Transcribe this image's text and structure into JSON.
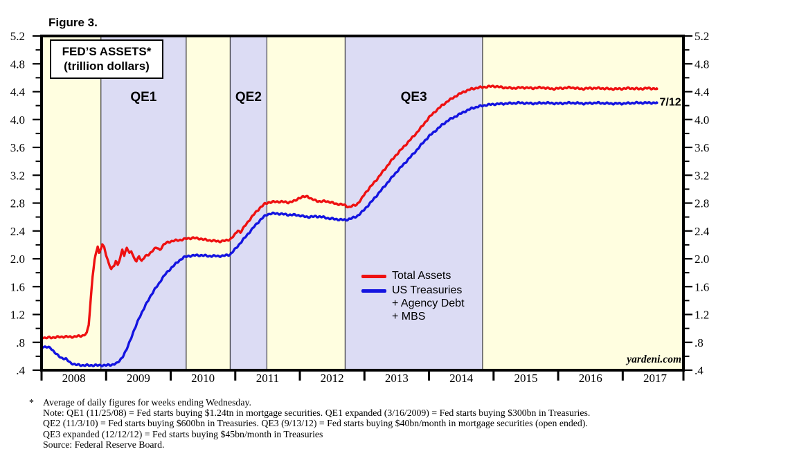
{
  "figure_label": "Figure 3.",
  "panel_title": {
    "line1": "FED’S ASSETS*",
    "line2": "(trillion dollars)"
  },
  "watermark": "yardeni.com",
  "legend": {
    "total_assets": "Total Assets",
    "treasuries_line1": "US Treasuries",
    "treasuries_line2": "+ Agency Debt",
    "treasuries_line3": "+ MBS"
  },
  "footnote": {
    "marker": "*",
    "lines": [
      "Average of daily figures for weeks ending Wednesday.",
      "Note: QE1 (11/25/08) = Fed starts buying $1.24tn in mortgage securities. QE1 expanded (3/16/2009) = Fed starts buying $300bn in Treasuries.",
      "QE2 (11/3/10) = Fed starts buying $600bn in Treasuries. QE3 (9/13/12) = Fed starts buying $40bn/month in mortgage securities (open ended).",
      "QE3 expanded (12/12/12) = Fed starts buying $45bn/month in Treasuries",
      "Source: Federal Reserve Board."
    ]
  },
  "chart_data": {
    "type": "line",
    "title": "FED'S ASSETS* (trillion dollars)",
    "xlabel": "",
    "ylabel": "trillion dollars",
    "x_domain": [
      2008,
      2017.94
    ],
    "y_domain": [
      0.4,
      5.2
    ],
    "y_major_step": 0.4,
    "y_minor_step": 0.2,
    "grid": false,
    "background_color": "#fffee0",
    "band_color": "#dcdcf4",
    "frame_color": "#000000",
    "y_ticks": [
      {
        "v": 5.2,
        "label": "5.2"
      },
      {
        "v": 4.8,
        "label": "4.8"
      },
      {
        "v": 4.4,
        "label": "4.4"
      },
      {
        "v": 4.0,
        "label": "4.0"
      },
      {
        "v": 3.6,
        "label": "3.6"
      },
      {
        "v": 3.2,
        "label": "3.2"
      },
      {
        "v": 2.8,
        "label": "2.8"
      },
      {
        "v": 2.4,
        "label": "2.4"
      },
      {
        "v": 2.0,
        "label": "2.0"
      },
      {
        "v": 1.6,
        "label": "1.6"
      },
      {
        "v": 1.2,
        "label": "1.2"
      },
      {
        "v": 0.8,
        "label": ".8"
      },
      {
        "v": 0.4,
        "label": ".4"
      }
    ],
    "x_ticks": [
      2008,
      2009,
      2010,
      2011,
      2012,
      2013,
      2014,
      2015,
      2016,
      2017
    ],
    "x_year_labels": [
      {
        "t": 2008.5,
        "label": "2008"
      },
      {
        "t": 2009.5,
        "label": "2009"
      },
      {
        "t": 2010.5,
        "label": "2010"
      },
      {
        "t": 2011.5,
        "label": "2011"
      },
      {
        "t": 2012.5,
        "label": "2012"
      },
      {
        "t": 2013.5,
        "label": "2013"
      },
      {
        "t": 2014.5,
        "label": "2014"
      },
      {
        "t": 2015.5,
        "label": "2015"
      },
      {
        "t": 2016.5,
        "label": "2016"
      },
      {
        "t": 2017.5,
        "label": "2017"
      }
    ],
    "qe_bands": [
      {
        "label": "QE1",
        "from": 2008.92,
        "to": 2010.24
      },
      {
        "label": "QE2",
        "from": 2010.92,
        "to": 2011.49
      },
      {
        "label": "QE3",
        "from": 2012.7,
        "to": 2014.83
      }
    ],
    "end_annotation": {
      "text": "7/12",
      "t": 2017.57,
      "v": 4.25
    },
    "series": [
      {
        "name": "Total Assets",
        "color": "#ee1111",
        "points": [
          [
            2008.0,
            0.88
          ],
          [
            2008.06,
            0.86
          ],
          [
            2008.12,
            0.87
          ],
          [
            2008.2,
            0.87
          ],
          [
            2008.3,
            0.88
          ],
          [
            2008.4,
            0.88
          ],
          [
            2008.5,
            0.88
          ],
          [
            2008.58,
            0.89
          ],
          [
            2008.65,
            0.9
          ],
          [
            2008.7,
            0.93
          ],
          [
            2008.73,
            1.05
          ],
          [
            2008.76,
            1.4
          ],
          [
            2008.79,
            1.75
          ],
          [
            2008.82,
            1.98
          ],
          [
            2008.85,
            2.1
          ],
          [
            2008.87,
            2.18
          ],
          [
            2008.89,
            2.08
          ],
          [
            2008.91,
            2.12
          ],
          [
            2008.94,
            2.22
          ],
          [
            2008.97,
            2.16
          ],
          [
            2009.0,
            2.05
          ],
          [
            2009.04,
            1.93
          ],
          [
            2009.08,
            1.86
          ],
          [
            2009.12,
            1.9
          ],
          [
            2009.15,
            1.96
          ],
          [
            2009.18,
            1.91
          ],
          [
            2009.22,
            2.02
          ],
          [
            2009.25,
            2.14
          ],
          [
            2009.28,
            2.04
          ],
          [
            2009.32,
            2.16
          ],
          [
            2009.36,
            2.08
          ],
          [
            2009.39,
            2.12
          ],
          [
            2009.43,
            2.01
          ],
          [
            2009.47,
            1.96
          ],
          [
            2009.51,
            2.04
          ],
          [
            2009.55,
            1.97
          ],
          [
            2009.6,
            2.03
          ],
          [
            2009.66,
            2.06
          ],
          [
            2009.72,
            2.12
          ],
          [
            2009.78,
            2.16
          ],
          [
            2009.83,
            2.13
          ],
          [
            2009.9,
            2.21
          ],
          [
            2009.96,
            2.24
          ],
          [
            2010.05,
            2.26
          ],
          [
            2010.15,
            2.27
          ],
          [
            2010.25,
            2.29
          ],
          [
            2010.35,
            2.3
          ],
          [
            2010.45,
            2.29
          ],
          [
            2010.55,
            2.27
          ],
          [
            2010.65,
            2.26
          ],
          [
            2010.75,
            2.25
          ],
          [
            2010.85,
            2.26
          ],
          [
            2010.92,
            2.28
          ],
          [
            2010.99,
            2.34
          ],
          [
            2011.04,
            2.41
          ],
          [
            2011.08,
            2.38
          ],
          [
            2011.14,
            2.46
          ],
          [
            2011.22,
            2.56
          ],
          [
            2011.3,
            2.65
          ],
          [
            2011.38,
            2.73
          ],
          [
            2011.46,
            2.79
          ],
          [
            2011.52,
            2.81
          ],
          [
            2011.62,
            2.82
          ],
          [
            2011.72,
            2.82
          ],
          [
            2011.82,
            2.81
          ],
          [
            2011.92,
            2.83
          ],
          [
            2011.98,
            2.87
          ],
          [
            2012.06,
            2.89
          ],
          [
            2012.12,
            2.9
          ],
          [
            2012.17,
            2.86
          ],
          [
            2012.24,
            2.84
          ],
          [
            2012.32,
            2.82
          ],
          [
            2012.4,
            2.83
          ],
          [
            2012.48,
            2.81
          ],
          [
            2012.56,
            2.79
          ],
          [
            2012.64,
            2.78
          ],
          [
            2012.7,
            2.77
          ],
          [
            2012.76,
            2.74
          ],
          [
            2012.82,
            2.76
          ],
          [
            2012.88,
            2.78
          ],
          [
            2012.95,
            2.85
          ],
          [
            2013.0,
            2.93
          ],
          [
            2013.1,
            3.04
          ],
          [
            2013.2,
            3.15
          ],
          [
            2013.3,
            3.27
          ],
          [
            2013.4,
            3.39
          ],
          [
            2013.5,
            3.5
          ],
          [
            2013.6,
            3.6
          ],
          [
            2013.7,
            3.7
          ],
          [
            2013.8,
            3.8
          ],
          [
            2013.9,
            3.91
          ],
          [
            2014.0,
            4.03
          ],
          [
            2014.1,
            4.12
          ],
          [
            2014.2,
            4.2
          ],
          [
            2014.3,
            4.27
          ],
          [
            2014.42,
            4.34
          ],
          [
            2014.54,
            4.4
          ],
          [
            2014.66,
            4.44
          ],
          [
            2014.78,
            4.46
          ],
          [
            2014.9,
            4.47
          ],
          [
            2015.0,
            4.48
          ],
          [
            2015.15,
            4.46
          ],
          [
            2015.3,
            4.45
          ],
          [
            2015.45,
            4.46
          ],
          [
            2015.6,
            4.45
          ],
          [
            2015.75,
            4.46
          ],
          [
            2015.9,
            4.44
          ],
          [
            2016.05,
            4.45
          ],
          [
            2016.2,
            4.46
          ],
          [
            2016.35,
            4.44
          ],
          [
            2016.5,
            4.45
          ],
          [
            2016.65,
            4.45
          ],
          [
            2016.8,
            4.44
          ],
          [
            2016.95,
            4.44
          ],
          [
            2017.1,
            4.45
          ],
          [
            2017.25,
            4.44
          ],
          [
            2017.4,
            4.45
          ],
          [
            2017.53,
            4.44
          ]
        ]
      },
      {
        "name": "US Treasuries + Agency Debt + MBS",
        "color": "#1414e0",
        "points": [
          [
            2008.0,
            0.74
          ],
          [
            2008.08,
            0.73
          ],
          [
            2008.14,
            0.72
          ],
          [
            2008.18,
            0.68
          ],
          [
            2008.24,
            0.62
          ],
          [
            2008.3,
            0.58
          ],
          [
            2008.38,
            0.56
          ],
          [
            2008.44,
            0.51
          ],
          [
            2008.52,
            0.48
          ],
          [
            2008.65,
            0.47
          ],
          [
            2008.8,
            0.47
          ],
          [
            2009.0,
            0.47
          ],
          [
            2009.1,
            0.48
          ],
          [
            2009.17,
            0.5
          ],
          [
            2009.21,
            0.54
          ],
          [
            2009.26,
            0.6
          ],
          [
            2009.31,
            0.68
          ],
          [
            2009.36,
            0.8
          ],
          [
            2009.41,
            0.92
          ],
          [
            2009.46,
            1.03
          ],
          [
            2009.51,
            1.15
          ],
          [
            2009.56,
            1.24
          ],
          [
            2009.61,
            1.33
          ],
          [
            2009.66,
            1.42
          ],
          [
            2009.71,
            1.5
          ],
          [
            2009.76,
            1.57
          ],
          [
            2009.81,
            1.63
          ],
          [
            2009.86,
            1.71
          ],
          [
            2009.91,
            1.77
          ],
          [
            2009.96,
            1.82
          ],
          [
            2010.02,
            1.88
          ],
          [
            2010.08,
            1.93
          ],
          [
            2010.14,
            1.98
          ],
          [
            2010.2,
            2.02
          ],
          [
            2010.28,
            2.04
          ],
          [
            2010.38,
            2.05
          ],
          [
            2010.48,
            2.05
          ],
          [
            2010.58,
            2.04
          ],
          [
            2010.7,
            2.04
          ],
          [
            2010.8,
            2.04
          ],
          [
            2010.92,
            2.06
          ],
          [
            2011.0,
            2.14
          ],
          [
            2011.1,
            2.25
          ],
          [
            2011.2,
            2.36
          ],
          [
            2011.3,
            2.47
          ],
          [
            2011.4,
            2.57
          ],
          [
            2011.48,
            2.63
          ],
          [
            2011.55,
            2.65
          ],
          [
            2011.65,
            2.65
          ],
          [
            2011.75,
            2.64
          ],
          [
            2011.85,
            2.63
          ],
          [
            2011.95,
            2.63
          ],
          [
            2012.05,
            2.61
          ],
          [
            2012.15,
            2.6
          ],
          [
            2012.25,
            2.61
          ],
          [
            2012.35,
            2.6
          ],
          [
            2012.45,
            2.58
          ],
          [
            2012.55,
            2.57
          ],
          [
            2012.65,
            2.56
          ],
          [
            2012.72,
            2.56
          ],
          [
            2012.8,
            2.58
          ],
          [
            2012.88,
            2.61
          ],
          [
            2012.95,
            2.66
          ],
          [
            2013.0,
            2.71
          ],
          [
            2013.1,
            2.81
          ],
          [
            2013.2,
            2.92
          ],
          [
            2013.3,
            3.03
          ],
          [
            2013.4,
            3.14
          ],
          [
            2013.5,
            3.25
          ],
          [
            2013.6,
            3.35
          ],
          [
            2013.7,
            3.45
          ],
          [
            2013.8,
            3.55
          ],
          [
            2013.9,
            3.66
          ],
          [
            2014.0,
            3.76
          ],
          [
            2014.1,
            3.84
          ],
          [
            2014.2,
            3.92
          ],
          [
            2014.3,
            3.99
          ],
          [
            2014.42,
            4.05
          ],
          [
            2014.54,
            4.11
          ],
          [
            2014.66,
            4.16
          ],
          [
            2014.78,
            4.19
          ],
          [
            2014.9,
            4.21
          ],
          [
            2015.0,
            4.22
          ],
          [
            2015.2,
            4.23
          ],
          [
            2015.4,
            4.24
          ],
          [
            2015.6,
            4.23
          ],
          [
            2015.8,
            4.24
          ],
          [
            2016.0,
            4.23
          ],
          [
            2016.2,
            4.24
          ],
          [
            2016.4,
            4.23
          ],
          [
            2016.6,
            4.24
          ],
          [
            2016.8,
            4.23
          ],
          [
            2017.0,
            4.23
          ],
          [
            2017.2,
            4.24
          ],
          [
            2017.4,
            4.24
          ],
          [
            2017.53,
            4.24
          ]
        ]
      }
    ]
  }
}
